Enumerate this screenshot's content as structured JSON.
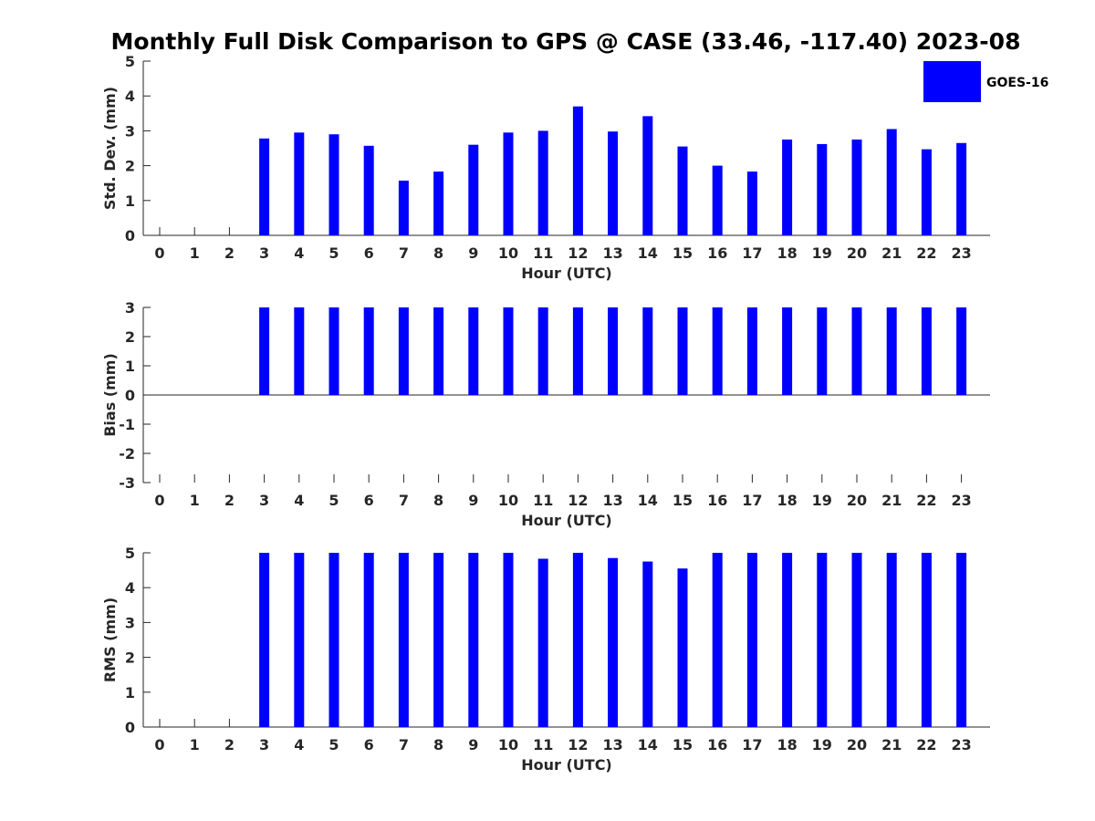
{
  "title": "Monthly Full Disk Comparison to GPS @ CASE (33.46, -117.40) 2023-08",
  "legend": {
    "label": "GOES-16",
    "color": "#0000ff",
    "placement": "top-right"
  },
  "chart_data": [
    {
      "type": "bar",
      "ylabel": "Std. Dev. (mm)",
      "xlabel": "Hour (UTC)",
      "ylim": [
        0,
        5
      ],
      "yticks": [
        "0",
        "1",
        "2",
        "3",
        "4",
        "5"
      ],
      "categories": [
        "0",
        "1",
        "2",
        "3",
        "4",
        "5",
        "6",
        "7",
        "8",
        "9",
        "10",
        "11",
        "12",
        "13",
        "14",
        "15",
        "16",
        "17",
        "18",
        "19",
        "20",
        "21",
        "22",
        "23"
      ],
      "series": [
        {
          "name": "GOES-16",
          "values": [
            null,
            null,
            null,
            2.78,
            2.95,
            2.9,
            2.57,
            1.57,
            1.83,
            2.6,
            2.95,
            3.0,
            3.7,
            2.98,
            3.42,
            2.55,
            2.0,
            1.83,
            2.75,
            2.62,
            2.75,
            3.05,
            2.47,
            2.65
          ]
        }
      ]
    },
    {
      "type": "bar",
      "ylabel": "Bias (mm)",
      "xlabel": "Hour (UTC)",
      "ylim": [
        -3,
        3
      ],
      "yticks": [
        "-3",
        "-2",
        "-1",
        "0",
        "1",
        "2",
        "3"
      ],
      "categories": [
        "0",
        "1",
        "2",
        "3",
        "4",
        "5",
        "6",
        "7",
        "8",
        "9",
        "10",
        "11",
        "12",
        "13",
        "14",
        "15",
        "16",
        "17",
        "18",
        "19",
        "20",
        "21",
        "22",
        "23"
      ],
      "series": [
        {
          "name": "GOES-16",
          "values": [
            null,
            null,
            null,
            3,
            3,
            3,
            3,
            3,
            3,
            3,
            3,
            3,
            3,
            3,
            3,
            3,
            3,
            3,
            3,
            3,
            3,
            3,
            3,
            3
          ]
        }
      ]
    },
    {
      "type": "bar",
      "ylabel": "RMS (mm)",
      "xlabel": "Hour (UTC)",
      "ylim": [
        0,
        5
      ],
      "yticks": [
        "0",
        "1",
        "2",
        "3",
        "4",
        "5"
      ],
      "categories": [
        "0",
        "1",
        "2",
        "3",
        "4",
        "5",
        "6",
        "7",
        "8",
        "9",
        "10",
        "11",
        "12",
        "13",
        "14",
        "15",
        "16",
        "17",
        "18",
        "19",
        "20",
        "21",
        "22",
        "23"
      ],
      "series": [
        {
          "name": "GOES-16",
          "values": [
            null,
            null,
            null,
            5,
            5,
            5,
            5,
            5,
            5,
            5,
            5,
            4.83,
            5,
            4.85,
            4.75,
            4.55,
            5,
            5,
            5,
            5,
            5,
            5,
            5,
            5
          ]
        }
      ]
    }
  ]
}
